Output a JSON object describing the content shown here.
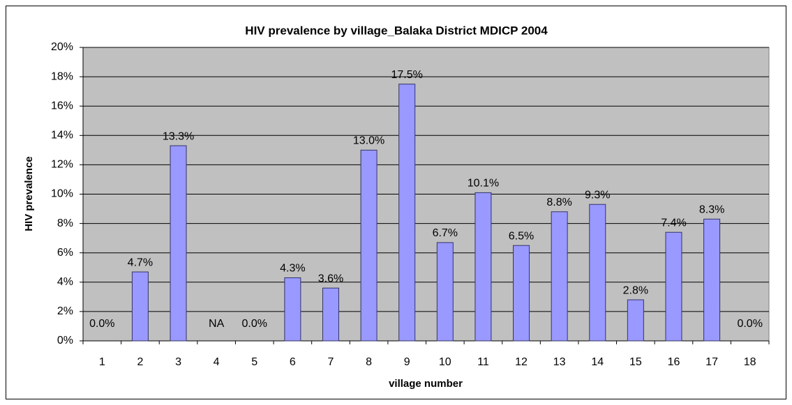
{
  "chart_data": {
    "type": "bar",
    "title": "HIV prevalence by village_Balaka District MDICP 2004",
    "x_label": "village number",
    "y_label": "HIV prevalence",
    "categories": [
      "1",
      "2",
      "3",
      "4",
      "5",
      "6",
      "7",
      "8",
      "9",
      "10",
      "11",
      "12",
      "13",
      "14",
      "15",
      "16",
      "17",
      "18"
    ],
    "values": [
      0,
      4.7,
      13.3,
      null,
      0,
      4.3,
      3.6,
      13.0,
      17.5,
      6.7,
      10.1,
      6.5,
      8.8,
      9.3,
      2.8,
      7.4,
      8.3,
      0
    ],
    "value_labels": [
      "0.0%",
      "4.7%",
      "13.3%",
      "NA",
      "0.0%",
      "4.3%",
      "3.6%",
      "13.0%",
      "17.5%",
      "6.7%",
      "10.1%",
      "6.5%",
      "8.8%",
      "9.3%",
      "2.8%",
      "7.4%",
      "8.3%",
      "0.0%"
    ],
    "color": "#9999ff",
    "ylim": [
      0,
      20
    ],
    "yticks": [
      {
        "value": 0,
        "label": "0%"
      },
      {
        "value": 2,
        "label": "2%"
      },
      {
        "value": 4,
        "label": "4%"
      },
      {
        "value": 6,
        "label": "6%"
      },
      {
        "value": 8,
        "label": "8%"
      },
      {
        "value": 10,
        "label": "10%"
      },
      {
        "value": 12,
        "label": "12%"
      },
      {
        "value": 14,
        "label": "14%"
      },
      {
        "value": 16,
        "label": "16%"
      },
      {
        "value": 18,
        "label": "18%"
      },
      {
        "value": 20,
        "label": "20%"
      }
    ],
    "grid": true
  }
}
